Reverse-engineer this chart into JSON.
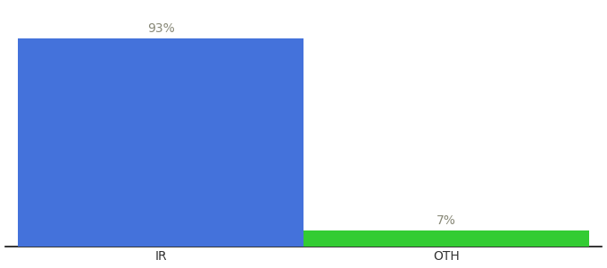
{
  "categories": [
    "IR",
    "OTH"
  ],
  "values": [
    93,
    7
  ],
  "bar_colors": [
    "#4472db",
    "#33cc33"
  ],
  "label_texts": [
    "93%",
    "7%"
  ],
  "background_color": "#ffffff",
  "text_color": "#888877",
  "label_fontsize": 10,
  "tick_fontsize": 10,
  "bar_width": 0.55,
  "x_positions": [
    0.3,
    0.85
  ],
  "xlim": [
    0.0,
    1.15
  ],
  "ylim": [
    0,
    108
  ]
}
